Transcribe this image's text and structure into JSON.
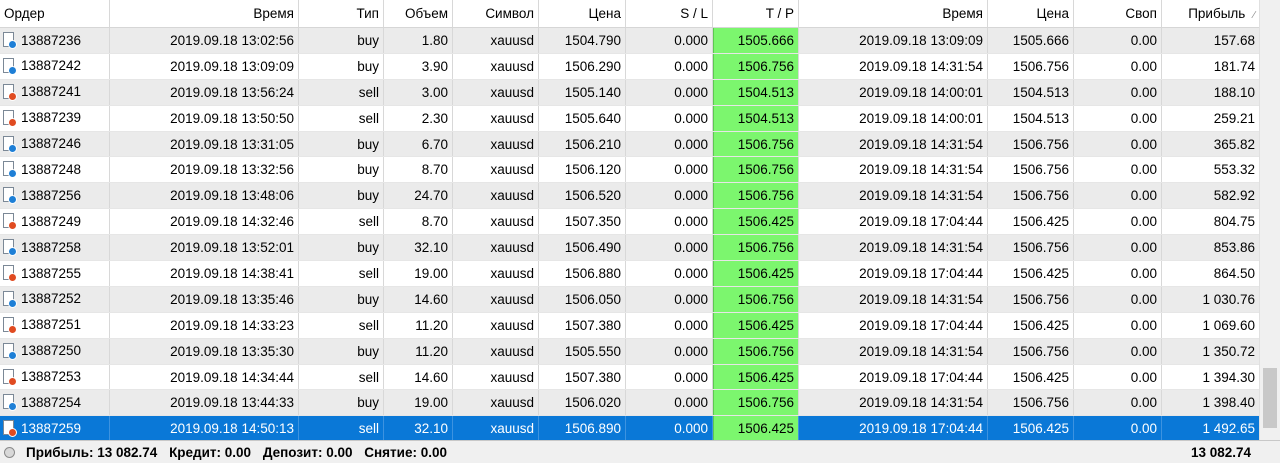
{
  "columns": {
    "order": "Ордер",
    "time_open": "Время",
    "type": "Тип",
    "volume": "Объем",
    "symbol": "Символ",
    "price_open": "Цена",
    "sl": "S / L",
    "tp": "T / P",
    "time_close": "Время",
    "price_close": "Цена",
    "swap": "Своп",
    "profit": "Прибыль"
  },
  "colors": {
    "tp_highlight": "#7cf66e",
    "selected_row": "#0a78d7",
    "buy_icon": "#1e7fd6",
    "sell_icon": "#e04b21"
  },
  "rows": [
    {
      "order": "13887236",
      "time_open": "2019.09.18 13:02:56",
      "type": "buy",
      "volume": "1.80",
      "symbol": "xauusd",
      "price_open": "1504.790",
      "sl": "0.000",
      "tp": "1505.666",
      "time_close": "2019.09.18 13:09:09",
      "price_close": "1505.666",
      "swap": "0.00",
      "profit": "157.68"
    },
    {
      "order": "13887242",
      "time_open": "2019.09.18 13:09:09",
      "type": "buy",
      "volume": "3.90",
      "symbol": "xauusd",
      "price_open": "1506.290",
      "sl": "0.000",
      "tp": "1506.756",
      "time_close": "2019.09.18 14:31:54",
      "price_close": "1506.756",
      "swap": "0.00",
      "profit": "181.74"
    },
    {
      "order": "13887241",
      "time_open": "2019.09.18 13:56:24",
      "type": "sell",
      "volume": "3.00",
      "symbol": "xauusd",
      "price_open": "1505.140",
      "sl": "0.000",
      "tp": "1504.513",
      "time_close": "2019.09.18 14:00:01",
      "price_close": "1504.513",
      "swap": "0.00",
      "profit": "188.10"
    },
    {
      "order": "13887239",
      "time_open": "2019.09.18 13:50:50",
      "type": "sell",
      "volume": "2.30",
      "symbol": "xauusd",
      "price_open": "1505.640",
      "sl": "0.000",
      "tp": "1504.513",
      "time_close": "2019.09.18 14:00:01",
      "price_close": "1504.513",
      "swap": "0.00",
      "profit": "259.21"
    },
    {
      "order": "13887246",
      "time_open": "2019.09.18 13:31:05",
      "type": "buy",
      "volume": "6.70",
      "symbol": "xauusd",
      "price_open": "1506.210",
      "sl": "0.000",
      "tp": "1506.756",
      "time_close": "2019.09.18 14:31:54",
      "price_close": "1506.756",
      "swap": "0.00",
      "profit": "365.82"
    },
    {
      "order": "13887248",
      "time_open": "2019.09.18 13:32:56",
      "type": "buy",
      "volume": "8.70",
      "symbol": "xauusd",
      "price_open": "1506.120",
      "sl": "0.000",
      "tp": "1506.756",
      "time_close": "2019.09.18 14:31:54",
      "price_close": "1506.756",
      "swap": "0.00",
      "profit": "553.32"
    },
    {
      "order": "13887256",
      "time_open": "2019.09.18 13:48:06",
      "type": "buy",
      "volume": "24.70",
      "symbol": "xauusd",
      "price_open": "1506.520",
      "sl": "0.000",
      "tp": "1506.756",
      "time_close": "2019.09.18 14:31:54",
      "price_close": "1506.756",
      "swap": "0.00",
      "profit": "582.92"
    },
    {
      "order": "13887249",
      "time_open": "2019.09.18 14:32:46",
      "type": "sell",
      "volume": "8.70",
      "symbol": "xauusd",
      "price_open": "1507.350",
      "sl": "0.000",
      "tp": "1506.425",
      "time_close": "2019.09.18 17:04:44",
      "price_close": "1506.425",
      "swap": "0.00",
      "profit": "804.75"
    },
    {
      "order": "13887258",
      "time_open": "2019.09.18 13:52:01",
      "type": "buy",
      "volume": "32.10",
      "symbol": "xauusd",
      "price_open": "1506.490",
      "sl": "0.000",
      "tp": "1506.756",
      "time_close": "2019.09.18 14:31:54",
      "price_close": "1506.756",
      "swap": "0.00",
      "profit": "853.86"
    },
    {
      "order": "13887255",
      "time_open": "2019.09.18 14:38:41",
      "type": "sell",
      "volume": "19.00",
      "symbol": "xauusd",
      "price_open": "1506.880",
      "sl": "0.000",
      "tp": "1506.425",
      "time_close": "2019.09.18 17:04:44",
      "price_close": "1506.425",
      "swap": "0.00",
      "profit": "864.50"
    },
    {
      "order": "13887252",
      "time_open": "2019.09.18 13:35:46",
      "type": "buy",
      "volume": "14.60",
      "symbol": "xauusd",
      "price_open": "1506.050",
      "sl": "0.000",
      "tp": "1506.756",
      "time_close": "2019.09.18 14:31:54",
      "price_close": "1506.756",
      "swap": "0.00",
      "profit": "1 030.76"
    },
    {
      "order": "13887251",
      "time_open": "2019.09.18 14:33:23",
      "type": "sell",
      "volume": "11.20",
      "symbol": "xauusd",
      "price_open": "1507.380",
      "sl": "0.000",
      "tp": "1506.425",
      "time_close": "2019.09.18 17:04:44",
      "price_close": "1506.425",
      "swap": "0.00",
      "profit": "1 069.60"
    },
    {
      "order": "13887250",
      "time_open": "2019.09.18 13:35:30",
      "type": "buy",
      "volume": "11.20",
      "symbol": "xauusd",
      "price_open": "1505.550",
      "sl": "0.000",
      "tp": "1506.756",
      "time_close": "2019.09.18 14:31:54",
      "price_close": "1506.756",
      "swap": "0.00",
      "profit": "1 350.72"
    },
    {
      "order": "13887253",
      "time_open": "2019.09.18 14:34:44",
      "type": "sell",
      "volume": "14.60",
      "symbol": "xauusd",
      "price_open": "1507.380",
      "sl": "0.000",
      "tp": "1506.425",
      "time_close": "2019.09.18 17:04:44",
      "price_close": "1506.425",
      "swap": "0.00",
      "profit": "1 394.30"
    },
    {
      "order": "13887254",
      "time_open": "2019.09.18 13:44:33",
      "type": "buy",
      "volume": "19.00",
      "symbol": "xauusd",
      "price_open": "1506.020",
      "sl": "0.000",
      "tp": "1506.756",
      "time_close": "2019.09.18 14:31:54",
      "price_close": "1506.756",
      "swap": "0.00",
      "profit": "1 398.40"
    },
    {
      "order": "13887259",
      "time_open": "2019.09.18 14:50:13",
      "type": "sell",
      "volume": "32.10",
      "symbol": "xauusd",
      "price_open": "1506.890",
      "sl": "0.000",
      "tp": "1506.425",
      "time_close": "2019.09.18 17:04:44",
      "price_close": "1506.425",
      "swap": "0.00",
      "profit": "1 492.65",
      "selected": true
    }
  ],
  "summary": {
    "profit": "Прибыль: 13 082.74",
    "credit": "Кредит: 0.00",
    "deposit": "Депозит: 0.00",
    "withdrawal": "Снятие: 0.00",
    "total": "13 082.74"
  }
}
